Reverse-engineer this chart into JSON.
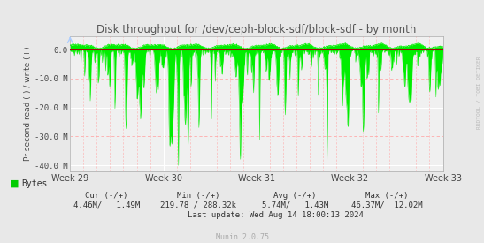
{
  "title": "Disk throughput for /dev/ceph-block-sdf/block-sdf - by month",
  "ylabel": "Pr second read (-) / write (+)",
  "xlabel_ticks": [
    "Week 29",
    "Week 30",
    "Week 31",
    "Week 32",
    "Week 33"
  ],
  "ylim": [
    -42000000,
    4500000
  ],
  "yticks": [
    -40000000,
    -30000000,
    -20000000,
    -10000000,
    0.0
  ],
  "ytick_labels": [
    "-40.0 M",
    "-30.0 M",
    "-20.0 M",
    "-10.0 M",
    "0.0"
  ],
  "bg_color": "#e8e8e8",
  "plot_bg_color": "#f0f0f0",
  "grid_color_major": "#ffffff",
  "grid_color_dotted": "#ffaaaa",
  "line_color": "#00ee00",
  "zero_line_color": "#cc0000",
  "title_color": "#555555",
  "watermark": "RRDTOOL / TOBI OETIKER",
  "legend_label": "Bytes",
  "legend_color": "#00cc00",
  "footer_cur_label": "Cur (-/+)",
  "footer_cur_val": "4.46M/   1.49M",
  "footer_min_label": "Min (-/+)",
  "footer_min_val": "219.78 / 288.32k",
  "footer_avg_label": "Avg (-/+)",
  "footer_avg_val": "5.74M/   1.43M",
  "footer_max_label": "Max (-/+)",
  "footer_max_val": "46.37M/  12.02M",
  "footer_update": "Last update: Wed Aug 14 18:00:13 2024",
  "munin_version": "Munin 2.0.75",
  "num_points": 800
}
